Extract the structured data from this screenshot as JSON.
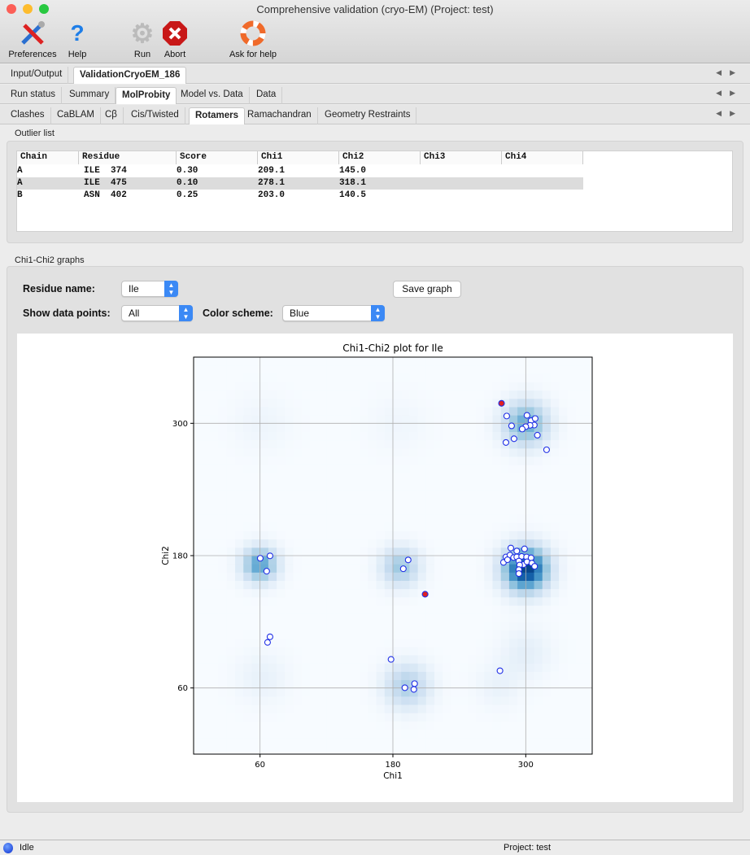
{
  "window": {
    "title": "Comprehensive validation (cryo-EM) (Project: test)"
  },
  "toolbar": [
    {
      "label": "Preferences",
      "icon": "wrench-screwdriver-icon"
    },
    {
      "label": "Help",
      "icon": "question-mark-icon"
    },
    {
      "label": "Run",
      "icon": "gear-icon"
    },
    {
      "label": "Abort",
      "icon": "stop-x-icon"
    },
    {
      "label": "Ask for help",
      "icon": "lifebuoy-icon"
    }
  ],
  "tabs_main": [
    {
      "label": "Input/Output"
    },
    {
      "label": "ValidationCryoEM_186",
      "active": true
    }
  ],
  "tabs_sub": [
    {
      "label": "Run status"
    },
    {
      "label": "Summary"
    },
    {
      "label": "MolProbity",
      "active": true
    },
    {
      "label": "Model vs. Data"
    },
    {
      "label": "Data"
    }
  ],
  "tabs_molprobity": [
    {
      "label": "Clashes"
    },
    {
      "label": "CaBLAM"
    },
    {
      "label": "Cβ"
    },
    {
      "label": "Cis/Twisted"
    },
    {
      "label": "Rotamers",
      "active": true
    },
    {
      "label": "Ramachandran"
    },
    {
      "label": "Geometry Restraints"
    }
  ],
  "outliers": {
    "title": "Outlier list",
    "columns": [
      "Chain",
      "Residue",
      "Score",
      "Chi1",
      "Chi2",
      "Chi3",
      "Chi4"
    ],
    "rows": [
      [
        "A",
        "ILE  374",
        "0.30",
        "209.1",
        "145.0",
        "",
        ""
      ],
      [
        "A",
        "ILE  475",
        "0.10",
        "278.1",
        "318.1",
        "",
        ""
      ],
      [
        "B",
        "ASN  402",
        "0.25",
        "203.0",
        "140.5",
        "",
        ""
      ]
    ],
    "selected_row": 1
  },
  "graphs": {
    "title": "Chi1-Chi2 graphs",
    "residue_label": "Residue name:",
    "residue_value": "Ile",
    "show_label": "Show data points:",
    "show_value": "All",
    "scheme_label": "Color scheme:",
    "scheme_value": "Blue",
    "save_label": "Save graph"
  },
  "chart_data": {
    "type": "scatter",
    "title": "Chi1-Chi2 plot for Ile",
    "xlabel": "Chi1",
    "ylabel": "Chi2",
    "xlim": [
      0,
      360
    ],
    "ylim": [
      0,
      360
    ],
    "xticks": [
      60,
      180,
      300
    ],
    "yticks": [
      60,
      180,
      300
    ],
    "grid": true,
    "colormap": "Blues",
    "density_peaks": [
      {
        "chi1": 300,
        "chi2": 168,
        "weight": 1.0,
        "spread": 14
      },
      {
        "chi1": 300,
        "chi2": 300,
        "weight": 0.55,
        "spread": 14
      },
      {
        "chi1": 60,
        "chi2": 172,
        "weight": 0.6,
        "spread": 11
      },
      {
        "chi1": 187,
        "chi2": 170,
        "weight": 0.4,
        "spread": 12
      },
      {
        "chi1": 193,
        "chi2": 62,
        "weight": 0.35,
        "spread": 14
      },
      {
        "chi1": 62,
        "chi2": 70,
        "weight": 0.08,
        "spread": 16
      },
      {
        "chi1": 300,
        "chi2": 92,
        "weight": 0.1,
        "spread": 16
      },
      {
        "chi1": 275,
        "chi2": 62,
        "weight": 0.07,
        "spread": 14
      },
      {
        "chi1": 62,
        "chi2": 300,
        "weight": 0.05,
        "spread": 18
      },
      {
        "chi1": 185,
        "chi2": 300,
        "weight": 0.04,
        "spread": 18
      }
    ],
    "points": [
      [
        282.8,
        306.6
      ],
      [
        287.2,
        297.7
      ],
      [
        301.1,
        307.2
      ],
      [
        304.8,
        302.4
      ],
      [
        308.5,
        304.3
      ],
      [
        307.7,
        298.4
      ],
      [
        303.9,
        298.2
      ],
      [
        300,
        297
      ],
      [
        296.8,
        294.8
      ],
      [
        310.5,
        289.2
      ],
      [
        289.4,
        286
      ],
      [
        282.1,
        282.6
      ],
      [
        318.8,
        276
      ],
      [
        286.5,
        186.9
      ],
      [
        291.9,
        184.2
      ],
      [
        298.9,
        186.1
      ],
      [
        282.1,
        178.8
      ],
      [
        285.7,
        180.5
      ],
      [
        289,
        178.3
      ],
      [
        291.9,
        178.8
      ],
      [
        296.3,
        179.3
      ],
      [
        300.7,
        178.8
      ],
      [
        304.8,
        178
      ],
      [
        279.9,
        173.9
      ],
      [
        283.5,
        176.3
      ],
      [
        293.8,
        175.1
      ],
      [
        298,
        171.9
      ],
      [
        301.1,
        174.4
      ],
      [
        305.5,
        173.2
      ],
      [
        308,
        170.3
      ],
      [
        294.5,
        171.5
      ],
      [
        293.8,
        167.3
      ],
      [
        293.8,
        163.7
      ],
      [
        60.2,
        177.6
      ],
      [
        69,
        179.8
      ],
      [
        66,
        165.9
      ],
      [
        193.8,
        176.1
      ],
      [
        189.4,
        168.1
      ],
      [
        69,
        106.4
      ],
      [
        66.8,
        101.3
      ],
      [
        178.3,
        85.9
      ],
      [
        190.8,
        60.2
      ],
      [
        199.6,
        63.9
      ],
      [
        198.9,
        58.7
      ],
      [
        276.7,
        75.6
      ]
    ],
    "outlier_points": [
      [
        278.1,
        318.1
      ],
      [
        209.1,
        145.0
      ]
    ],
    "point_color": "#ffffff",
    "point_edge": "#1f2fe6",
    "outlier_color": "#e02020"
  },
  "status": {
    "state": "Idle",
    "project": "Project: test"
  }
}
